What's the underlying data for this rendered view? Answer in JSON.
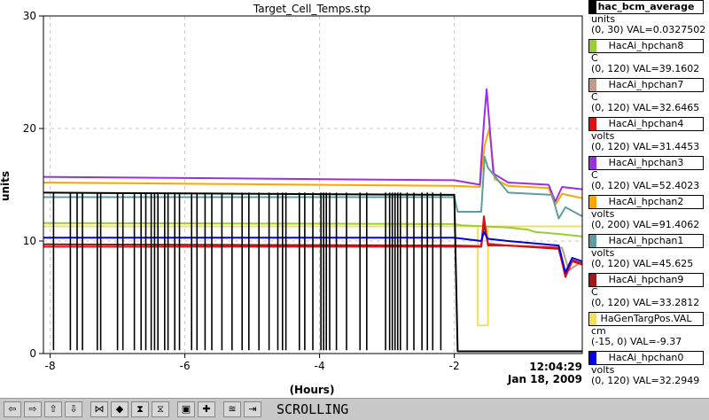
{
  "chart_data": {
    "type": "line",
    "title": "Target_Cell_Temps.stp",
    "xlabel": "(Hours)",
    "ylabel": "units",
    "xlim": [
      -8.1,
      -0.1
    ],
    "ylim": [
      0,
      30
    ],
    "x_ticks": [
      "-8",
      "-6",
      "-4",
      "-2"
    ],
    "y_ticks": [
      "0",
      "10",
      "20",
      "30"
    ],
    "time_label": "12:04:29",
    "date_label": "Jan 18, 2009",
    "grid": true,
    "legend_position": "right",
    "series": [
      {
        "name": "hac_bcm_average",
        "unit": "units",
        "range": "(0, 30)",
        "readout": "VAL=0.0327502",
        "color": "#000000",
        "x": [
          -8.1,
          -2.0,
          -1.95,
          -0.1
        ],
        "y": [
          14.3,
          14.1,
          0.2,
          0.2
        ]
      },
      {
        "name": "HacAi_hpchan8",
        "unit": "C",
        "range": "(0, 120)",
        "readout": "VAL=39.1602",
        "color": "#9acd32",
        "x": [
          -8.1,
          -2.0,
          -1.9,
          -1.2,
          -0.9,
          -0.8,
          -0.4,
          -0.1
        ],
        "y": [
          11.6,
          11.5,
          11.4,
          11.2,
          11.0,
          10.8,
          10.6,
          10.4
        ]
      },
      {
        "name": "HacAi_hpchan7",
        "unit": "C",
        "range": "(0, 120)",
        "readout": "VAL=32.6465",
        "color": "#c49a8a",
        "x": [
          -8.1,
          -2.0,
          -1.6,
          -1.56,
          -1.5,
          -1.2,
          -0.4,
          -0.3,
          -0.1
        ],
        "y": [
          9.7,
          9.6,
          9.6,
          11.8,
          9.8,
          9.6,
          9.4,
          7.4,
          8.2
        ]
      },
      {
        "name": "HacAi_hpchan4",
        "unit": "volts",
        "range": "(0, 120)",
        "readout": "VAL=31.4453",
        "color": "#e01010",
        "x": [
          -8.1,
          -2.0,
          -1.6,
          -1.56,
          -1.5,
          -1.2,
          -0.45,
          -0.35,
          -0.25,
          -0.1
        ],
        "y": [
          9.5,
          9.5,
          9.5,
          12.2,
          9.6,
          9.6,
          9.4,
          6.8,
          8.2,
          7.9
        ]
      },
      {
        "name": "HacAi_hpchan3",
        "unit": "C",
        "range": "(0, 120)",
        "readout": "VAL=52.4023",
        "color": "#9b30e0",
        "x": [
          -8.1,
          -2.0,
          -1.62,
          -1.6,
          -1.56,
          -1.52,
          -1.42,
          -1.2,
          -0.6,
          -0.5,
          -0.4,
          -0.1
        ],
        "y": [
          15.7,
          15.4,
          15.0,
          17.0,
          20.5,
          23.5,
          16.0,
          15.2,
          15.0,
          13.5,
          14.8,
          14.6
        ]
      },
      {
        "name": "HacAi_hpchan2",
        "unit": "volts",
        "range": "(0, 200)",
        "readout": "VAL=91.4062",
        "color": "#ffa500",
        "x": [
          -8.1,
          -2.0,
          -1.62,
          -1.6,
          -1.55,
          -1.48,
          -1.4,
          -1.2,
          -0.6,
          -0.5,
          -0.4,
          -0.1
        ],
        "y": [
          15.2,
          14.9,
          14.8,
          16.0,
          18.5,
          20.0,
          15.5,
          14.9,
          14.7,
          13.2,
          14.2,
          13.8
        ]
      },
      {
        "name": "HacAi_hpchan1",
        "unit": "volts",
        "range": "(0, 120)",
        "readout": "VAL=45.625",
        "color": "#5f9ea0",
        "x": [
          -8.1,
          -2.0,
          -1.95,
          -1.6,
          -1.55,
          -1.5,
          -1.2,
          -0.55,
          -0.45,
          -0.35,
          -0.1
        ],
        "y": [
          13.9,
          13.9,
          12.6,
          12.6,
          17.5,
          16.5,
          14.3,
          14.1,
          12.0,
          13.0,
          12.2
        ]
      },
      {
        "name": "HacAi_hpchan9",
        "unit": "C",
        "range": "(0, 120)",
        "readout": "VAL=33.2812",
        "color": "#a01818",
        "x": [
          -8.1,
          -2.0,
          -1.6,
          -1.56,
          -1.5,
          -1.2,
          -0.45,
          -0.35,
          -0.25,
          -0.1
        ],
        "y": [
          9.7,
          9.6,
          9.5,
          11.5,
          9.7,
          9.6,
          9.3,
          7.0,
          8.3,
          8.0
        ]
      },
      {
        "name": "HaGenTargPos.VAL",
        "unit": "cm",
        "range": "(-15, 0)",
        "readout": "VAL=-9.37",
        "color": "#f0e060",
        "x": [
          -8.1,
          -1.65,
          -1.65,
          -1.5,
          -1.5,
          -0.1
        ],
        "y": [
          11.3,
          11.3,
          2.5,
          2.5,
          11.3,
          11.3
        ]
      },
      {
        "name": "HacAi_hpchan0",
        "unit": "volts",
        "range": "(0, 120)",
        "readout": "VAL=32.2949",
        "color": "#0000ee",
        "x": [
          -8.1,
          -2.0,
          -1.6,
          -1.56,
          -1.5,
          -1.2,
          -0.45,
          -0.35,
          -0.25,
          -0.1
        ],
        "y": [
          10.3,
          10.3,
          10.0,
          10.8,
          10.2,
          10.0,
          9.6,
          7.2,
          8.5,
          8.2
        ]
      }
    ],
    "black_dropouts_x": [
      -7.95,
      -7.7,
      -7.6,
      -7.52,
      -7.3,
      -7.25,
      -7.0,
      -6.92,
      -6.75,
      -6.65,
      -6.58,
      -6.5,
      -6.45,
      -6.4,
      -6.3,
      -6.25,
      -6.15,
      -6.08,
      -5.9,
      -5.82,
      -5.7,
      -5.6,
      -5.45,
      -5.3,
      -5.15,
      -5.05,
      -4.9,
      -4.75,
      -4.62,
      -4.55,
      -4.5,
      -4.3,
      -4.22,
      -4.1,
      -3.98,
      -3.94,
      -3.9,
      -3.85,
      -3.75,
      -3.6,
      -3.4,
      -3.3,
      -3.02,
      -2.96,
      -2.92,
      -2.88,
      -2.84,
      -2.8,
      -2.7,
      -2.6,
      -2.48,
      -2.4,
      -2.32,
      -2.2
    ]
  },
  "legend_colors": {
    "hac_bcm_average": "#000000",
    "HacAi_hpchan8": "#9acd32",
    "HacAi_hpchan7": "#c49a8a",
    "HacAi_hpchan4": "#e01010",
    "HacAi_hpchan3": "#9b30e0",
    "HacAi_hpchan2": "#ffa500",
    "HacAi_hpchan1": "#5f9ea0",
    "HacAi_hpchan9": "#a01818",
    "HaGenTargPos.VAL": "#f0e060",
    "HacAi_hpchan0": "#0000ee"
  },
  "toolbar": {
    "buttons": [
      {
        "name": "scroll-left-button",
        "glyph": "⇦"
      },
      {
        "name": "scroll-right-button",
        "glyph": "⇨"
      },
      {
        "name": "scroll-up-button",
        "glyph": "⇧"
      },
      {
        "name": "scroll-down-button",
        "glyph": "⇩"
      },
      {
        "name": "compress-horizontal-button",
        "glyph": "⋈"
      },
      {
        "name": "expand-horizontal-button",
        "glyph": "◆"
      },
      {
        "name": "compress-vertical-button",
        "glyph": "⧗"
      },
      {
        "name": "expand-vertical-button",
        "glyph": "⧖"
      },
      {
        "name": "zoom-box-button",
        "glyph": "▣"
      },
      {
        "name": "pan-button",
        "glyph": "✚"
      },
      {
        "name": "autoscale-button",
        "glyph": "≊"
      },
      {
        "name": "jump-to-end-button",
        "glyph": "⇥"
      }
    ],
    "status": "SCROLLING"
  }
}
